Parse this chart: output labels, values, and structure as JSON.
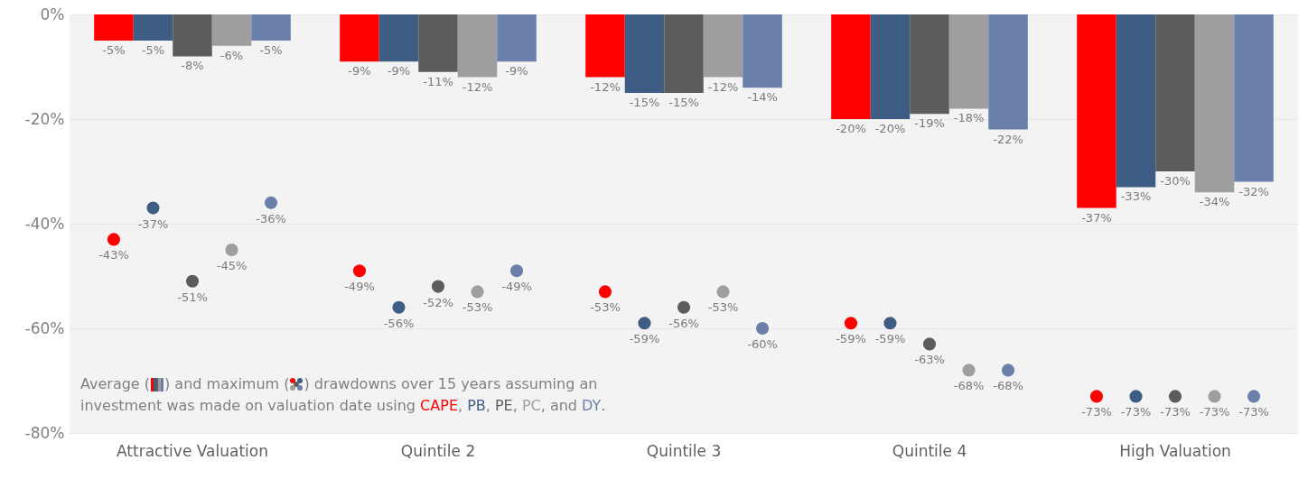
{
  "chart_data": {
    "type": "bar",
    "categories": [
      "Attractive Valuation",
      "Quintile 2",
      "Quintile 3",
      "Quintile 4",
      "High Valuation"
    ],
    "series": [
      {
        "name": "CAPE",
        "color": "#ff0000",
        "values": [
          -5,
          -9,
          -12,
          -20,
          -37
        ],
        "value_labels": [
          "-5%",
          "-9%",
          "-12%",
          "-20%",
          "-37%"
        ]
      },
      {
        "name": "PB",
        "color": "#3d5d84",
        "values": [
          -5,
          -9,
          -15,
          -20,
          -33
        ],
        "value_labels": [
          "-5%",
          "-9%",
          "-15%",
          "-20%",
          "-33%"
        ]
      },
      {
        "name": "PE",
        "color": "#5c5c5c",
        "values": [
          -8,
          -11,
          -15,
          -19,
          -30
        ],
        "value_labels": [
          "-8%",
          "-11%",
          "-15%",
          "-19%",
          "-30%"
        ]
      },
      {
        "name": "PC",
        "color": "#9e9e9e",
        "values": [
          -6,
          -12,
          -12,
          -18,
          -34
        ],
        "value_labels": [
          "-6%",
          "-12%",
          "-12%",
          "-18%",
          "-34%"
        ]
      },
      {
        "name": "DY",
        "color": "#6a7faa",
        "values": [
          -5,
          -9,
          -14,
          -22,
          -32
        ],
        "value_labels": [
          "-5%",
          "-9%",
          "-14%",
          "-22%",
          "-32%"
        ]
      },
      {
        "type": "scatter",
        "color": "#ff0000",
        "values": [
          -43,
          -49,
          -53,
          -59,
          -73
        ],
        "value_labels": [
          "-43%",
          "-49%",
          "-53%",
          "-59%",
          "-73%"
        ]
      },
      {
        "type": "scatter",
        "color": "#3d5d84",
        "values": [
          -37,
          -56,
          -59,
          -59,
          -73
        ],
        "value_labels": [
          "-37%",
          "-56%",
          "-59%",
          "-59%",
          "-73%"
        ]
      },
      {
        "type": "scatter",
        "color": "#5c5c5c",
        "values": [
          -51,
          -52,
          -56,
          -63,
          -73
        ],
        "value_labels": [
          "-51%",
          "-52%",
          "-56%",
          "-63%",
          "-73%"
        ]
      },
      {
        "type": "scatter",
        "color": "#9e9e9e",
        "values": [
          -45,
          -53,
          -53,
          -68,
          -73
        ],
        "value_labels": [
          "-45%",
          "-53%",
          "-53%",
          "-68%",
          "-73%"
        ]
      },
      {
        "type": "scatter",
        "color": "#6a7faa",
        "values": [
          -36,
          -49,
          -60,
          -68,
          -73
        ],
        "value_labels": [
          "-36%",
          "-49%",
          "-60%",
          "-68%",
          "-73%"
        ]
      }
    ],
    "ylim": [
      -80,
      0
    ],
    "yticks": [
      {
        "value": -80,
        "label": "-80%"
      },
      {
        "value": -60,
        "label": "-60%"
      },
      {
        "value": -40,
        "label": "-40%"
      },
      {
        "value": -20,
        "label": "-20%"
      },
      {
        "value": 0,
        "label": "0%"
      }
    ],
    "grid": "y",
    "marker": "circle",
    "annotations": [
      "Average ( ) and maximum ( ) drawdowns over 15 years assuming an investment was made on valuation date using",
      ",",
      "and",
      "."
    ]
  }
}
